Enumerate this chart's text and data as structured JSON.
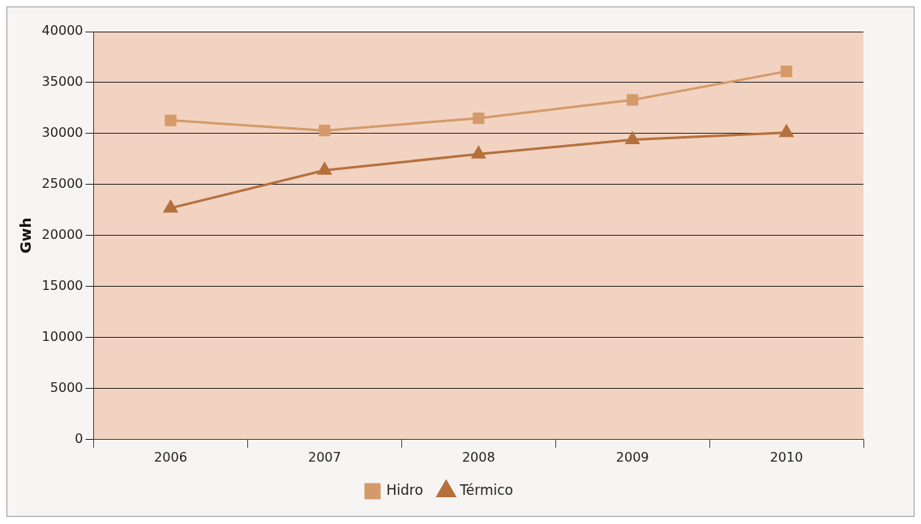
{
  "chart_data": {
    "type": "line",
    "ylabel": "Gwh",
    "categories": [
      "2006",
      "2007",
      "2008",
      "2009",
      "2010"
    ],
    "series": [
      {
        "name": "Hidro",
        "color": "#d49a6a",
        "marker": "square",
        "values": [
          31300,
          30300,
          31500,
          33300,
          36100
        ]
      },
      {
        "name": "Térmico",
        "color": "#b5703c",
        "marker": "triangle",
        "values": [
          22700,
          26400,
          28000,
          29400,
          30100
        ]
      }
    ],
    "ylim": [
      0,
      40000
    ],
    "yticks": [
      0,
      5000,
      10000,
      15000,
      20000,
      25000,
      30000,
      35000,
      40000
    ],
    "grid": "y",
    "legend": "bottom"
  }
}
